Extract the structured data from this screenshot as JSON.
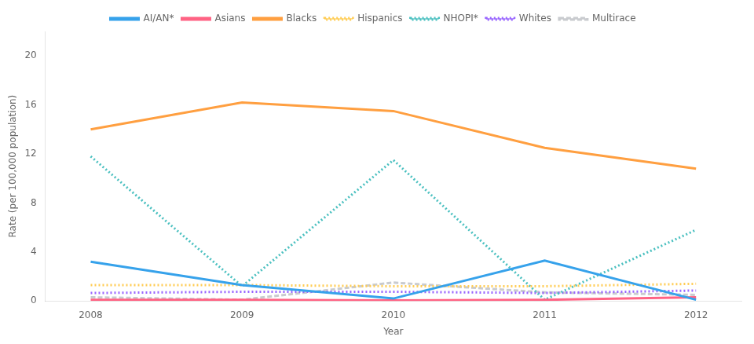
{
  "chart_data": {
    "type": "line",
    "x": [
      2008,
      2009,
      2010,
      2011,
      2012
    ],
    "series": [
      {
        "name": "AI/AN*",
        "values": [
          3.2,
          1.3,
          0.2,
          3.3,
          0.1
        ],
        "line_style": "solid"
      },
      {
        "name": "Asians",
        "values": [
          0.1,
          0.1,
          0.05,
          0.1,
          0.3
        ],
        "line_style": "solid"
      },
      {
        "name": "Blacks",
        "values": [
          14.0,
          16.2,
          15.5,
          12.5,
          10.8
        ],
        "line_style": "solid"
      },
      {
        "name": "Hispanics",
        "values": [
          1.3,
          1.3,
          1.2,
          1.2,
          1.4
        ],
        "line_style": "dotted"
      },
      {
        "name": "NHOPI*",
        "values": [
          11.8,
          1.2,
          11.5,
          0.1,
          5.8
        ],
        "line_style": "dotted"
      },
      {
        "name": "Whites",
        "values": [
          0.65,
          0.75,
          0.75,
          0.65,
          0.85
        ],
        "line_style": "dotted"
      },
      {
        "name": "Multirace",
        "values": [
          0.3,
          0.1,
          1.5,
          0.7,
          0.5
        ],
        "line_style": "dashed"
      }
    ],
    "xlabel": "Year",
    "ylabel": "Rate (per 100,000 population)",
    "xlim": [
      2007.7,
      2012.3
    ],
    "xticks": [
      2008,
      2009,
      2010,
      2011,
      2012
    ],
    "ylim": [
      0,
      22
    ],
    "yticks": [
      0,
      4,
      8,
      12,
      16,
      20
    ],
    "grid": false,
    "legend": "top"
  }
}
